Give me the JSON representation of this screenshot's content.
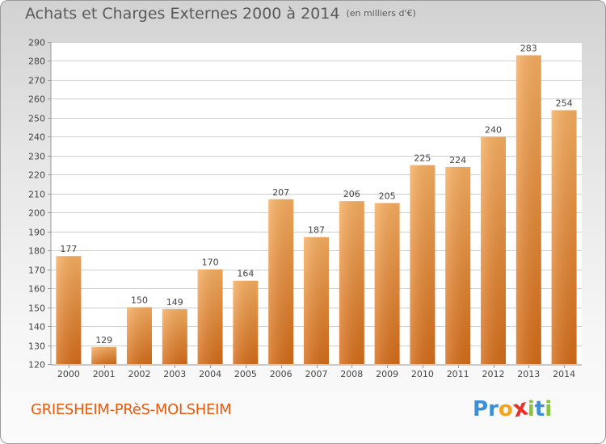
{
  "header": {
    "title": "Achats et Charges Externes 2000 à 2014",
    "unit": "(en milliers d'€)"
  },
  "footer": {
    "commune": "GRIESHEIM-PRèS-MOLSHEIM",
    "logo_letters": [
      "P",
      "r",
      "o",
      "x",
      "i",
      "t",
      "i"
    ],
    "logo_colors": [
      "#3a8fd6",
      "#3a8fd6",
      "#f2a31b",
      "#e8312a",
      "#8ac43f",
      "#3a8fd6",
      "#8ac43f"
    ]
  },
  "colors": {
    "bar_light": "#f6ac5c",
    "bar_dark": "#d86f1c",
    "grid": "#cfcfcf",
    "text": "#444444"
  },
  "chart_data": {
    "type": "bar",
    "title": "Achats et Charges Externes 2000 à 2014",
    "subtitle": "(en milliers d'€)",
    "categories": [
      "2000",
      "2001",
      "2002",
      "2003",
      "2004",
      "2005",
      "2006",
      "2007",
      "2008",
      "2009",
      "2010",
      "2011",
      "2012",
      "2013",
      "2014"
    ],
    "values": [
      177,
      129,
      150,
      149,
      170,
      164,
      207,
      187,
      206,
      205,
      225,
      224,
      240,
      283,
      254
    ],
    "ylim": [
      120,
      290
    ],
    "yticks": [
      120,
      130,
      140,
      150,
      160,
      170,
      180,
      190,
      200,
      210,
      220,
      230,
      240,
      250,
      260,
      270,
      280,
      290
    ],
    "grid": true,
    "xlabel": "",
    "ylabel": ""
  }
}
